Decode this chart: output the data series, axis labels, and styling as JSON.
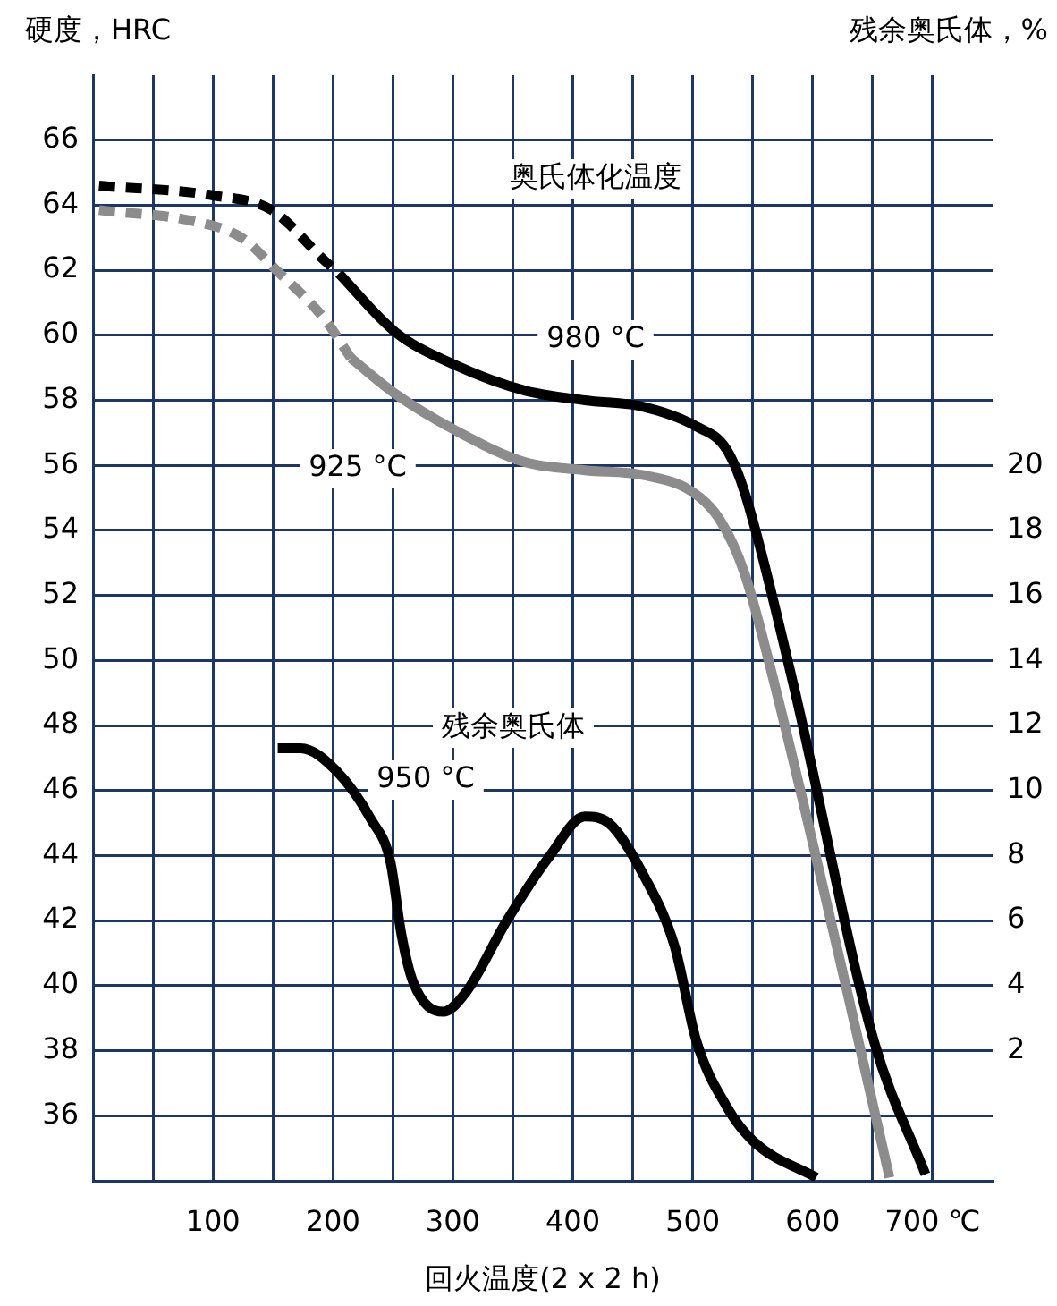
{
  "chart_data": {
    "type": "line",
    "xlabel": "回火温度(2 x 2 h)",
    "ylabel": "硬度，HRC",
    "y2label": "残余奥氏体，%",
    "xlim": [
      0,
      750
    ],
    "xticks": [
      {
        "value": 50,
        "label": null
      },
      100,
      {
        "value": 150,
        "label": null
      },
      200,
      {
        "value": 250,
        "label": null
      },
      300,
      {
        "value": 350,
        "label": null
      },
      400,
      {
        "value": 450,
        "label": null
      },
      500,
      {
        "value": 550,
        "label": null
      },
      600,
      {
        "value": 650,
        "label": null
      },
      {
        "value": 700,
        "label": "700 ℃"
      }
    ],
    "ylim": [
      34,
      68
    ],
    "yticks": [
      36,
      38,
      40,
      42,
      44,
      46,
      48,
      50,
      52,
      54,
      56,
      58,
      60,
      62,
      64,
      66
    ],
    "y2lim": [
      -2,
      32
    ],
    "y2ticks": [
      2,
      4,
      6,
      8,
      10,
      12,
      14,
      16,
      18,
      20
    ],
    "grid": true,
    "marker": "none",
    "series": [
      {
        "color": "#000000",
        "line_style": "dashed",
        "x": [
          5,
          100,
          149,
          193,
          205
        ],
        "values": [
          64.6,
          64.3,
          63.85,
          62.3,
          61.9
        ]
      },
      {
        "name": "980 °C",
        "color": "#000000",
        "line_style": "solid",
        "x": [
          205,
          252,
          301,
          360,
          410,
          459,
          503,
          528,
          543,
          583,
          651,
          694
        ],
        "values": [
          61.9,
          60.1,
          59.1,
          58.3,
          58.0,
          57.8,
          57.2,
          56.5,
          55.2,
          49.4,
          38.3,
          34.2
        ]
      },
      {
        "color": "#8c8c8c",
        "line_style": "dashed",
        "x": [
          5,
          85,
          124,
          153,
          193,
          215
        ],
        "values": [
          63.85,
          63.5,
          63.0,
          62.0,
          60.5,
          59.3
        ]
      },
      {
        "name": "925 °C",
        "color": "#8c8c8c",
        "line_style": "solid",
        "x": [
          215,
          252,
          301,
          360,
          410,
          459,
          499,
          523,
          543,
          568,
          627,
          664
        ],
        "values": [
          59.3,
          58.2,
          57.1,
          56.1,
          55.85,
          55.7,
          55.2,
          54.3,
          52.7,
          49.3,
          40.1,
          34.1
        ]
      },
      {
        "name": "950 °C",
        "color": "#000000",
        "line_style": "solid",
        "axis": "y2",
        "x": [
          154,
          173,
          203,
          232,
          248,
          257,
          267,
          292,
          311,
          345,
          381,
          410,
          430,
          459,
          485,
          503,
          528,
          551,
          603
        ],
        "values": [
          11.3,
          11.3,
          10.6,
          9.1,
          7.8,
          5.6,
          4.1,
          3.2,
          3.8,
          6.0,
          8.0,
          9.2,
          9.0,
          7.4,
          5.2,
          2.3,
          0.3,
          -0.8,
          -1.9
        ]
      }
    ],
    "annotations": [
      "奥氏体化温度",
      "残余奥氏体"
    ]
  }
}
